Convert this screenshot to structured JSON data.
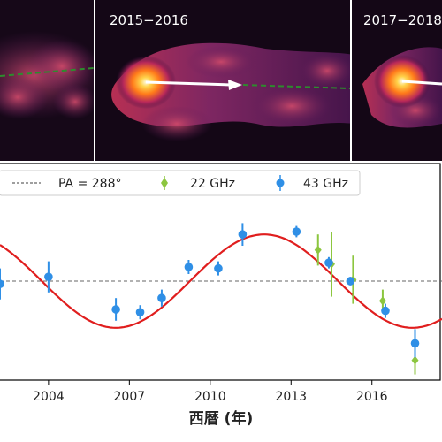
{
  "panels": [
    {
      "label": ""
    },
    {
      "label": "2015−2016"
    },
    {
      "label": "2017−2018"
    }
  ],
  "colors": {
    "background_dark": "#1a0a1e",
    "jet_glow": "#ff7a1a",
    "arrow": "#ffffff",
    "pa_line": "#2e8b2e",
    "model_curve": "#e01e1e",
    "series_22": "#8cc63f",
    "series_43": "#2f8fe6",
    "reference_line": "#666666"
  },
  "chart_data": {
    "type": "scatter",
    "xlabel": "西暦 (年)",
    "ylabel": "",
    "xlim": [
      2002.2,
      2018.6
    ],
    "ylim": [
      -0.3,
      1.0
    ],
    "xticks": [
      2004,
      2007,
      2010,
      2013,
      2016
    ],
    "xtick_labels": [
      "2004",
      "2007",
      "2010",
      "2013",
      "2016"
    ],
    "reference_line": {
      "label": "PA = 288°",
      "y": 0.4
    },
    "legend": {
      "placement": "top"
    },
    "series": [
      {
        "name": "22 GHz",
        "marker": "diamond",
        "points": [
          {
            "x": 2014.0,
            "y": 0.62,
            "err": 0.11
          },
          {
            "x": 2014.5,
            "y": 0.52,
            "err": 0.23
          },
          {
            "x": 2015.3,
            "y": 0.41,
            "err": 0.17
          },
          {
            "x": 2016.4,
            "y": 0.26,
            "err": 0.08
          },
          {
            "x": 2017.6,
            "y": -0.16,
            "err": 0.1
          }
        ]
      },
      {
        "name": "43 GHz",
        "marker": "circle",
        "points": [
          {
            "x": 2002.2,
            "y": 0.38,
            "err": 0.11
          },
          {
            "x": 2004.0,
            "y": 0.43,
            "err": 0.11
          },
          {
            "x": 2006.5,
            "y": 0.2,
            "err": 0.08
          },
          {
            "x": 2007.4,
            "y": 0.18,
            "err": 0.05
          },
          {
            "x": 2008.2,
            "y": 0.28,
            "err": 0.06
          },
          {
            "x": 2009.2,
            "y": 0.5,
            "err": 0.05
          },
          {
            "x": 2010.3,
            "y": 0.49,
            "err": 0.05
          },
          {
            "x": 2011.2,
            "y": 0.73,
            "err": 0.08
          },
          {
            "x": 2013.2,
            "y": 0.75,
            "err": 0.04
          },
          {
            "x": 2014.4,
            "y": 0.53,
            "err": 0.04
          },
          {
            "x": 2015.2,
            "y": 0.4,
            "err": 0.03
          },
          {
            "x": 2016.5,
            "y": 0.19,
            "err": 0.05
          },
          {
            "x": 2017.6,
            "y": -0.04,
            "err": 0.1
          }
        ]
      }
    ],
    "model": {
      "type": "sinusoid",
      "offset": 0.4,
      "amplitude": 0.33,
      "period_years": 11,
      "peak_year": 2012.0
    }
  }
}
